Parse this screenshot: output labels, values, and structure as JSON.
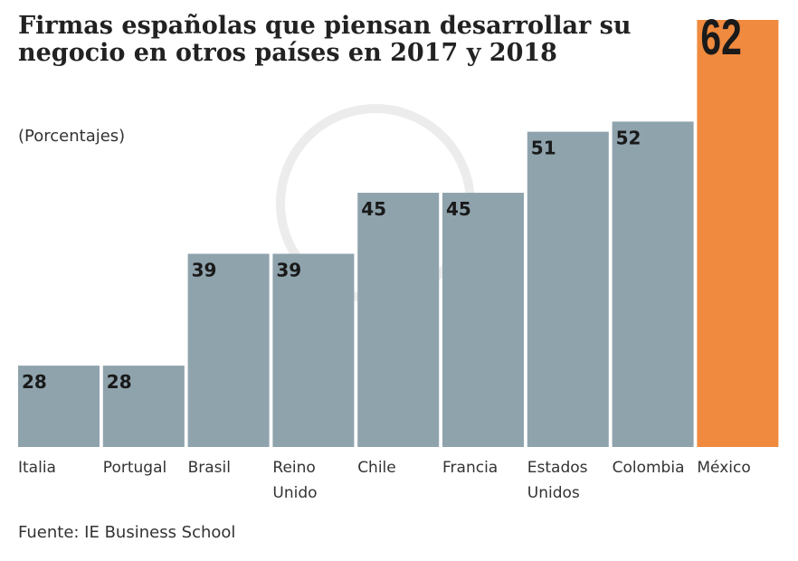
{
  "chart_data": {
    "type": "bar",
    "title": "Firmas españolas que piensan desarrollar su negocio en otros países en 2017 y 2018",
    "subtitle": "(Porcentajes)",
    "categories": [
      "Italia",
      "Portugal",
      "Brasil",
      "Reino Unido",
      "Chile",
      "Francia",
      "Estados Unidos",
      "Colombia",
      "México"
    ],
    "category_lines": [
      [
        "Italia"
      ],
      [
        "Portugal"
      ],
      [
        "Brasil"
      ],
      [
        "Reino",
        "Unido"
      ],
      [
        "Chile"
      ],
      [
        "Francia"
      ],
      [
        "Estados",
        "Unidos"
      ],
      [
        "Colombia"
      ],
      [
        "México"
      ]
    ],
    "values": [
      28,
      28,
      39,
      39,
      45,
      45,
      51,
      52,
      62
    ],
    "ylim": [
      20,
      62
    ],
    "grid": false,
    "highlight_index": 8,
    "colors": {
      "bar": "#8fa3ad",
      "highlight": "#f08a3e",
      "label": "#1a1a1a"
    },
    "source": "Fuente: IE Business School"
  }
}
